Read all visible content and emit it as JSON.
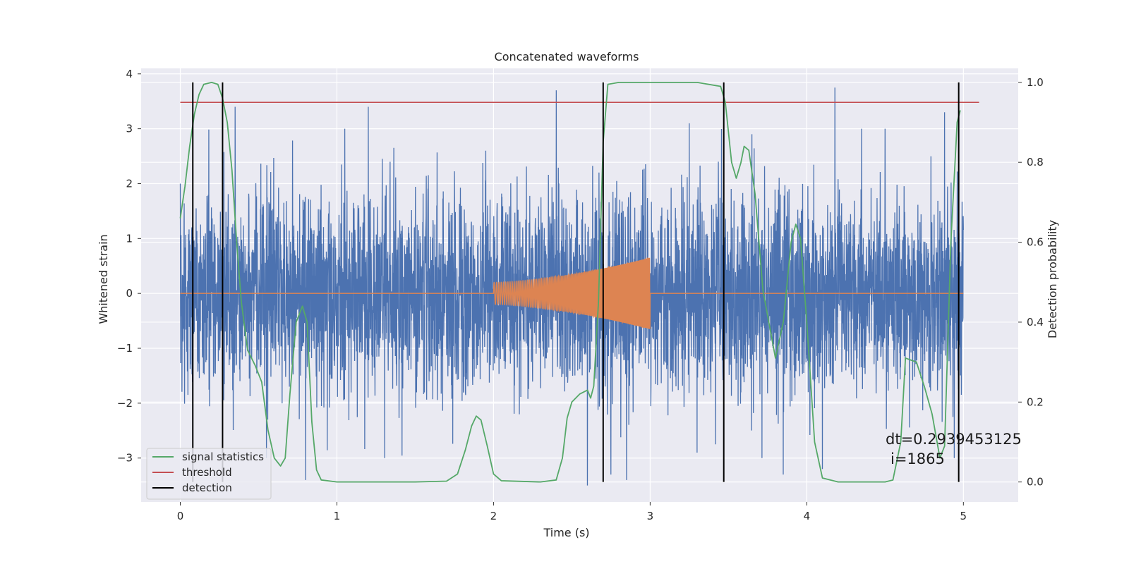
{
  "chart_data": {
    "type": "line",
    "title": "Concatenated waveforms",
    "xlabel": "Time (s)",
    "ylabel": "Whitened strain",
    "y2label": "Detection probability",
    "xlim": [
      -0.25,
      5.35
    ],
    "ylim": [
      -3.8,
      4.1
    ],
    "y2lim": [
      -0.05,
      1.035
    ],
    "xticks": [
      "0",
      "1",
      "2",
      "3",
      "4",
      "5"
    ],
    "yticks": [
      "4",
      "3",
      "2",
      "1",
      "0",
      "−1",
      "−2",
      "−3"
    ],
    "y2ticks": [
      "1.0",
      "0.8",
      "0.6",
      "0.4",
      "0.2",
      "0.0"
    ],
    "grid": true,
    "legend_position": "lower-left",
    "noise": {
      "x_range": [
        0,
        5
      ],
      "typical_envelope": 2.2,
      "peak_positive": [
        [
          0.0,
          2.0
        ],
        [
          0.35,
          3.4
        ],
        [
          0.8,
          2.9
        ],
        [
          1.05,
          3.0
        ],
        [
          1.2,
          3.4
        ],
        [
          1.95,
          2.6
        ],
        [
          2.4,
          3.7
        ],
        [
          3.25,
          3.1
        ],
        [
          3.65,
          2.9
        ],
        [
          4.18,
          3.75
        ],
        [
          4.35,
          3.0
        ],
        [
          4.5,
          3.0
        ],
        [
          4.88,
          3.3
        ]
      ],
      "peak_negative": [
        [
          0.08,
          -3.2
        ],
        [
          0.55,
          -3.0
        ],
        [
          0.8,
          -3.4
        ],
        [
          2.6,
          -3.5
        ],
        [
          2.75,
          -3.3
        ],
        [
          2.85,
          -3.4
        ],
        [
          3.3,
          -2.9
        ],
        [
          3.85,
          -3.3
        ],
        [
          4.1,
          -3.2
        ]
      ]
    },
    "chirp": {
      "t_start": 2.0,
      "t_end": 3.0,
      "amp_start": 0.2,
      "amp_end": 0.65,
      "cycles": 115
    },
    "threshold": 0.95,
    "detections": [
      0.08,
      0.27,
      2.7,
      3.47,
      4.97
    ],
    "signal_statistics": [
      [
        0.0,
        0.66
      ],
      [
        0.03,
        0.74
      ],
      [
        0.06,
        0.84
      ],
      [
        0.09,
        0.92
      ],
      [
        0.12,
        0.97
      ],
      [
        0.15,
        0.995
      ],
      [
        0.2,
        1.0
      ],
      [
        0.24,
        0.995
      ],
      [
        0.27,
        0.96
      ],
      [
        0.3,
        0.9
      ],
      [
        0.33,
        0.78
      ],
      [
        0.36,
        0.6
      ],
      [
        0.39,
        0.45
      ],
      [
        0.43,
        0.33
      ],
      [
        0.48,
        0.29
      ],
      [
        0.52,
        0.25
      ],
      [
        0.56,
        0.13
      ],
      [
        0.6,
        0.06
      ],
      [
        0.64,
        0.04
      ],
      [
        0.67,
        0.06
      ],
      [
        0.7,
        0.22
      ],
      [
        0.74,
        0.4
      ],
      [
        0.78,
        0.44
      ],
      [
        0.81,
        0.4
      ],
      [
        0.84,
        0.15
      ],
      [
        0.87,
        0.03
      ],
      [
        0.9,
        0.005
      ],
      [
        1.0,
        0.0
      ],
      [
        1.5,
        0.0
      ],
      [
        1.7,
        0.002
      ],
      [
        1.77,
        0.02
      ],
      [
        1.82,
        0.08
      ],
      [
        1.86,
        0.14
      ],
      [
        1.89,
        0.165
      ],
      [
        1.92,
        0.155
      ],
      [
        1.96,
        0.09
      ],
      [
        2.0,
        0.02
      ],
      [
        2.05,
        0.003
      ],
      [
        2.3,
        0.0
      ],
      [
        2.4,
        0.005
      ],
      [
        2.44,
        0.06
      ],
      [
        2.47,
        0.16
      ],
      [
        2.5,
        0.2
      ],
      [
        2.55,
        0.22
      ],
      [
        2.6,
        0.23
      ],
      [
        2.62,
        0.21
      ],
      [
        2.64,
        0.24
      ],
      [
        2.67,
        0.45
      ],
      [
        2.7,
        0.85
      ],
      [
        2.73,
        0.995
      ],
      [
        2.8,
        1.0
      ],
      [
        3.3,
        1.0
      ],
      [
        3.45,
        0.99
      ],
      [
        3.48,
        0.95
      ],
      [
        3.52,
        0.8
      ],
      [
        3.55,
        0.76
      ],
      [
        3.58,
        0.8
      ],
      [
        3.6,
        0.84
      ],
      [
        3.63,
        0.83
      ],
      [
        3.67,
        0.72
      ],
      [
        3.72,
        0.48
      ],
      [
        3.8,
        0.31
      ],
      [
        3.85,
        0.4
      ],
      [
        3.9,
        0.6
      ],
      [
        3.93,
        0.645
      ],
      [
        3.96,
        0.61
      ],
      [
        4.0,
        0.4
      ],
      [
        4.05,
        0.1
      ],
      [
        4.1,
        0.01
      ],
      [
        4.2,
        0.0
      ],
      [
        4.5,
        0.0
      ],
      [
        4.55,
        0.005
      ],
      [
        4.6,
        0.1
      ],
      [
        4.63,
        0.31
      ],
      [
        4.7,
        0.3
      ],
      [
        4.75,
        0.24
      ],
      [
        4.8,
        0.17
      ],
      [
        4.85,
        0.06
      ],
      [
        4.88,
        0.09
      ],
      [
        4.92,
        0.6
      ],
      [
        4.96,
        0.9
      ],
      [
        4.98,
        0.93
      ]
    ],
    "legend": [
      {
        "label": "signal statistics",
        "color": "#55a868"
      },
      {
        "label": "threshold",
        "color": "#c44e52"
      },
      {
        "label": "detection",
        "color": "#000000"
      }
    ],
    "annotation": {
      "line1": "dt=0.2939453125",
      "line2": "i=1865"
    },
    "colors": {
      "noise": "#4c72b0",
      "chirp": "#dd8452",
      "axes_bg": "#eaeaf2",
      "grid": "#ffffff"
    }
  }
}
